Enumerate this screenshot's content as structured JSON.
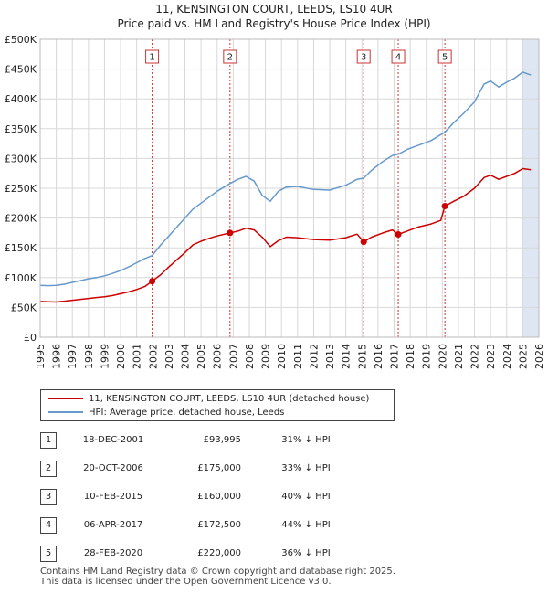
{
  "chart_data": {
    "type": "line",
    "title": "11, KENSINGTON COURT, LEEDS, LS10 4UR",
    "subtitle": "Price paid vs. HM Land Registry's House Price Index (HPI)",
    "x_range": [
      1995,
      2026
    ],
    "y_range": [
      0,
      500000
    ],
    "y_ticks": [
      {
        "value": 0,
        "label": "£0"
      },
      {
        "value": 50000,
        "label": "£50K"
      },
      {
        "value": 100000,
        "label": "£100K"
      },
      {
        "value": 150000,
        "label": "£150K"
      },
      {
        "value": 200000,
        "label": "£200K"
      },
      {
        "value": 250000,
        "label": "£250K"
      },
      {
        "value": 300000,
        "label": "£300K"
      },
      {
        "value": 350000,
        "label": "£350K"
      },
      {
        "value": 400000,
        "label": "£400K"
      },
      {
        "value": 450000,
        "label": "£450K"
      },
      {
        "value": 500000,
        "label": "£500K"
      }
    ],
    "x_ticks": [
      "1995",
      "1996",
      "1997",
      "1998",
      "1999",
      "2000",
      "2001",
      "2002",
      "2003",
      "2004",
      "2005",
      "2006",
      "2007",
      "2008",
      "2009",
      "2010",
      "2011",
      "2012",
      "2013",
      "2014",
      "2015",
      "2016",
      "2017",
      "2018",
      "2019",
      "2020",
      "2021",
      "2022",
      "2023",
      "2024",
      "2025",
      "2026"
    ],
    "grid": true,
    "series": [
      {
        "name": "11, KENSINGTON COURT, LEEDS, LS10 4UR (detached house)",
        "color": "#cc0000",
        "points": [
          [
            1995.0,
            60000
          ],
          [
            1995.5,
            59500
          ],
          [
            1996.0,
            59000
          ],
          [
            1996.5,
            60500
          ],
          [
            1997.0,
            62000
          ],
          [
            1997.5,
            63500
          ],
          [
            1998.0,
            65000
          ],
          [
            1998.5,
            66500
          ],
          [
            1999.0,
            68000
          ],
          [
            1999.5,
            70000
          ],
          [
            2000.0,
            73000
          ],
          [
            2000.5,
            76000
          ],
          [
            2001.0,
            80000
          ],
          [
            2001.5,
            85000
          ],
          [
            2001.96,
            93995
          ],
          [
            2002.5,
            105000
          ],
          [
            2003.0,
            118000
          ],
          [
            2003.5,
            130000
          ],
          [
            2004.0,
            142000
          ],
          [
            2004.5,
            155000
          ],
          [
            2005.0,
            161000
          ],
          [
            2005.5,
            166000
          ],
          [
            2006.0,
            170000
          ],
          [
            2006.8,
            175000
          ],
          [
            2007.3,
            178000
          ],
          [
            2007.8,
            183000
          ],
          [
            2008.3,
            180000
          ],
          [
            2008.8,
            168000
          ],
          [
            2009.3,
            152000
          ],
          [
            2009.8,
            162000
          ],
          [
            2010.3,
            168000
          ],
          [
            2011.0,
            167000
          ],
          [
            2012.0,
            164000
          ],
          [
            2013.0,
            163000
          ],
          [
            2014.0,
            167000
          ],
          [
            2014.7,
            173000
          ],
          [
            2015.11,
            160000
          ],
          [
            2015.6,
            168000
          ],
          [
            2016.3,
            175000
          ],
          [
            2016.9,
            180000
          ],
          [
            2017.26,
            172500
          ],
          [
            2017.8,
            178000
          ],
          [
            2018.5,
            185000
          ],
          [
            2019.3,
            190000
          ],
          [
            2019.9,
            196000
          ],
          [
            2020.16,
            220000
          ],
          [
            2020.7,
            228000
          ],
          [
            2021.3,
            236000
          ],
          [
            2022.0,
            250000
          ],
          [
            2022.6,
            268000
          ],
          [
            2023.0,
            272000
          ],
          [
            2023.5,
            265000
          ],
          [
            2024.0,
            270000
          ],
          [
            2024.5,
            275000
          ],
          [
            2025.0,
            283000
          ],
          [
            2025.5,
            281000
          ]
        ]
      },
      {
        "name": "HPI: Average price, detached house, Leeds",
        "color": "#6699cc",
        "points": [
          [
            1995.0,
            87000
          ],
          [
            1995.5,
            86500
          ],
          [
            1996.0,
            87000
          ],
          [
            1996.5,
            89000
          ],
          [
            1997.0,
            92000
          ],
          [
            1997.5,
            95000
          ],
          [
            1998.0,
            98000
          ],
          [
            1998.5,
            100000
          ],
          [
            1999.0,
            103000
          ],
          [
            1999.5,
            107000
          ],
          [
            2000.0,
            112000
          ],
          [
            2000.5,
            118000
          ],
          [
            2001.0,
            125000
          ],
          [
            2001.5,
            132000
          ],
          [
            2001.96,
            137000
          ],
          [
            2002.5,
            155000
          ],
          [
            2003.0,
            170000
          ],
          [
            2003.5,
            185000
          ],
          [
            2004.0,
            200000
          ],
          [
            2004.5,
            215000
          ],
          [
            2005.0,
            225000
          ],
          [
            2005.5,
            235000
          ],
          [
            2006.0,
            245000
          ],
          [
            2006.8,
            258000
          ],
          [
            2007.3,
            265000
          ],
          [
            2007.8,
            270000
          ],
          [
            2008.3,
            262000
          ],
          [
            2008.8,
            238000
          ],
          [
            2009.3,
            228000
          ],
          [
            2009.8,
            245000
          ],
          [
            2010.3,
            252000
          ],
          [
            2011.0,
            253000
          ],
          [
            2012.0,
            248000
          ],
          [
            2013.0,
            247000
          ],
          [
            2014.0,
            255000
          ],
          [
            2014.7,
            265000
          ],
          [
            2015.11,
            267000
          ],
          [
            2015.6,
            280000
          ],
          [
            2016.3,
            295000
          ],
          [
            2016.9,
            305000
          ],
          [
            2017.26,
            307000
          ],
          [
            2017.8,
            315000
          ],
          [
            2018.5,
            322000
          ],
          [
            2019.3,
            330000
          ],
          [
            2019.9,
            340000
          ],
          [
            2020.16,
            344000
          ],
          [
            2020.7,
            360000
          ],
          [
            2021.3,
            375000
          ],
          [
            2022.0,
            395000
          ],
          [
            2022.6,
            425000
          ],
          [
            2023.0,
            430000
          ],
          [
            2023.5,
            420000
          ],
          [
            2024.0,
            428000
          ],
          [
            2024.5,
            435000
          ],
          [
            2025.0,
            445000
          ],
          [
            2025.5,
            440000
          ]
        ]
      }
    ],
    "markers": [
      {
        "label": "1",
        "x": 2001.96,
        "y": 93995
      },
      {
        "label": "2",
        "x": 2006.8,
        "y": 175000
      },
      {
        "label": "3",
        "x": 2015.11,
        "y": 160000
      },
      {
        "label": "4",
        "x": 2017.26,
        "y": 172500
      },
      {
        "label": "5",
        "x": 2020.16,
        "y": 220000
      }
    ],
    "colors": {
      "property": "#cc0000",
      "hpi": "#6699cc",
      "shade": "#dde6f2",
      "grid": "#d8d8d8"
    }
  },
  "legend": {
    "items": [
      {
        "label": "11, KENSINGTON COURT, LEEDS, LS10 4UR (detached house)",
        "color": "#cc0000"
      },
      {
        "label": "HPI: Average price, detached house, Leeds",
        "color": "#6699cc"
      }
    ]
  },
  "sales": [
    {
      "num": "1",
      "date": "18-DEC-2001",
      "price": "£93,995",
      "hpi": "31% ↓ HPI"
    },
    {
      "num": "2",
      "date": "20-OCT-2006",
      "price": "£175,000",
      "hpi": "33% ↓ HPI"
    },
    {
      "num": "3",
      "date": "10-FEB-2015",
      "price": "£160,000",
      "hpi": "40% ↓ HPI"
    },
    {
      "num": "4",
      "date": "06-APR-2017",
      "price": "£172,500",
      "hpi": "44% ↓ HPI"
    },
    {
      "num": "5",
      "date": "28-FEB-2020",
      "price": "£220,000",
      "hpi": "36% ↓ HPI"
    }
  ],
  "footer": {
    "line1": "Contains HM Land Registry data © Crown copyright and database right 2025.",
    "line2": "This data is licensed under the Open Government Licence v3.0."
  }
}
